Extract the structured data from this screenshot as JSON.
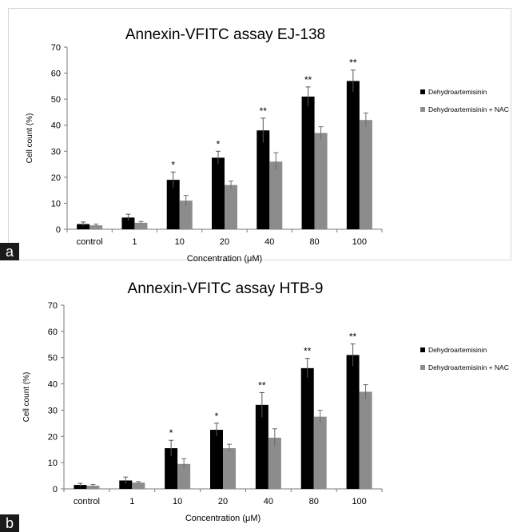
{
  "chart_data": [
    {
      "type": "bar",
      "title": "Annexin-VFITC assay EJ-138",
      "xlabel": "Concentration (μM)",
      "ylabel": "Cell count (%)",
      "ylim": [
        0,
        70
      ],
      "yticks": [
        "0",
        "10",
        "20",
        "30",
        "40",
        "50",
        "60",
        "70"
      ],
      "categories": [
        "control",
        "1",
        "10",
        "20",
        "40",
        "80",
        "100"
      ],
      "series": [
        {
          "name": "Dehydroartemisinin",
          "color": "#000000",
          "values": [
            2,
            4.5,
            19,
            27.5,
            38,
            51,
            57
          ],
          "errors": [
            0.8,
            1.3,
            3,
            2.5,
            4.7,
            3.7,
            4.2
          ]
        },
        {
          "name": "Dehydroartemisinin + NAC",
          "color": "#8c8c8c",
          "values": [
            1.5,
            2.5,
            11,
            17,
            26,
            37,
            42
          ],
          "errors": [
            0.5,
            0.5,
            2,
            1.5,
            3.4,
            2.4,
            2.7
          ]
        }
      ],
      "significance": [
        "",
        "",
        "*",
        "*",
        "**",
        "**",
        "**"
      ],
      "panel_label": "a",
      "legend_position": "right"
    },
    {
      "type": "bar",
      "title": "Annexin-VFITC assay HTB-9",
      "xlabel": "Concentration (μM)",
      "ylabel": "Cell count (%)",
      "ylim": [
        0,
        70
      ],
      "yticks": [
        "0",
        "10",
        "20",
        "30",
        "40",
        "50",
        "60",
        "70"
      ],
      "categories": [
        "control",
        "1",
        "10",
        "20",
        "40",
        "80",
        "100"
      ],
      "series": [
        {
          "name": "Dehydroartemisinin",
          "color": "#000000",
          "values": [
            1.5,
            3.2,
            15.5,
            22.5,
            32,
            46,
            51
          ],
          "errors": [
            0.6,
            1.3,
            3,
            2.5,
            4.7,
            3.7,
            4.2
          ]
        },
        {
          "name": "Dehydroartemisinin + NAC",
          "color": "#8c8c8c",
          "values": [
            1.2,
            2.4,
            9.5,
            15.5,
            19.5,
            27.5,
            37
          ],
          "errors": [
            0.5,
            0.4,
            2,
            1.5,
            3.4,
            2.4,
            2.7
          ]
        }
      ],
      "significance": [
        "",
        "",
        "*",
        "*",
        "**",
        "**",
        "**"
      ],
      "panel_label": "b",
      "legend_position": "right"
    }
  ]
}
